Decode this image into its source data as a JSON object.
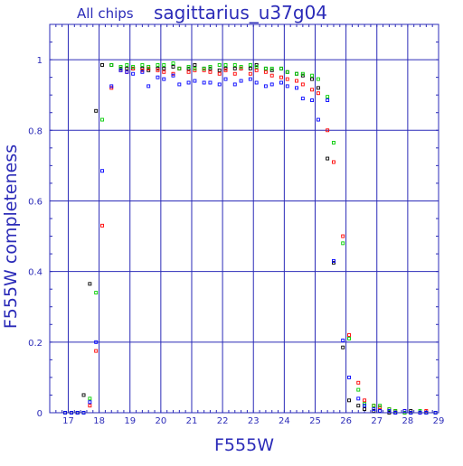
{
  "chart_data": {
    "type": "scatter",
    "title_prefix": "All chips",
    "title": "sagittarius_u37g04",
    "xlabel": "F555W",
    "ylabel": "F555W completeness",
    "xlim": [
      16.4,
      29.0
    ],
    "ylim": [
      0,
      1.1
    ],
    "xticks": [
      17,
      18,
      19,
      20,
      21,
      22,
      23,
      24,
      25,
      26,
      27,
      28,
      29
    ],
    "yticks": [
      0,
      0.2,
      0.4,
      0.6,
      0.8,
      1
    ],
    "ytick_labels": [
      "0",
      "0.2",
      "0.4",
      "0.6",
      "0.8",
      "1"
    ],
    "grid": true,
    "axis_color": "#2b2bb8",
    "series": [
      {
        "color": "#000000",
        "x": [
          16.9,
          17.1,
          17.3,
          17.5,
          17.7,
          17.9,
          18.1,
          18.4,
          18.7,
          18.9,
          19.1,
          19.4,
          19.6,
          19.9,
          20.1,
          20.4,
          20.6,
          20.9,
          21.1,
          21.4,
          21.6,
          21.9,
          22.1,
          22.4,
          22.6,
          22.9,
          23.1,
          23.4,
          23.6,
          23.9,
          24.1,
          24.4,
          24.6,
          24.9,
          25.1,
          25.4,
          25.6,
          25.9,
          26.1,
          26.4,
          26.6,
          26.9,
          27.1,
          27.4,
          27.6,
          27.9,
          28.1,
          28.4,
          28.6,
          28.9
        ],
        "y": [
          0.0,
          0.0,
          0.0,
          0.05,
          0.365,
          0.855,
          0.985,
          0.985,
          0.975,
          0.975,
          0.975,
          0.975,
          0.97,
          0.975,
          0.975,
          0.98,
          0.975,
          0.975,
          0.985,
          0.975,
          0.975,
          0.97,
          0.975,
          0.975,
          0.975,
          0.975,
          0.985,
          0.975,
          0.97,
          0.975,
          0.965,
          0.96,
          0.955,
          0.945,
          0.92,
          0.72,
          0.425,
          0.185,
          0.035,
          0.02,
          0.01,
          0.005,
          0.005,
          0.0,
          0.0,
          0.0,
          0.005,
          0.0,
          0.0,
          0.0
        ]
      },
      {
        "color": "#ff0000",
        "x": [
          16.9,
          17.1,
          17.3,
          17.5,
          17.7,
          17.9,
          18.1,
          18.4,
          18.7,
          18.9,
          19.1,
          19.4,
          19.6,
          19.9,
          20.1,
          20.4,
          20.6,
          20.9,
          21.1,
          21.4,
          21.6,
          21.9,
          22.1,
          22.4,
          22.6,
          22.9,
          23.1,
          23.4,
          23.6,
          23.9,
          24.1,
          24.4,
          24.6,
          24.9,
          25.1,
          25.4,
          25.6,
          25.9,
          26.1,
          26.4,
          26.6,
          26.9,
          27.1,
          27.4,
          27.6,
          27.9,
          28.1,
          28.4,
          28.6,
          28.9
        ],
        "y": [
          0.0,
          0.0,
          0.0,
          0.0,
          0.02,
          0.175,
          0.53,
          0.92,
          0.97,
          0.965,
          0.975,
          0.97,
          0.975,
          0.97,
          0.965,
          0.96,
          0.975,
          0.965,
          0.97,
          0.97,
          0.965,
          0.96,
          0.97,
          0.96,
          0.975,
          0.96,
          0.97,
          0.965,
          0.955,
          0.95,
          0.945,
          0.94,
          0.93,
          0.915,
          0.905,
          0.8,
          0.71,
          0.5,
          0.22,
          0.085,
          0.035,
          0.02,
          0.015,
          0.01,
          0.005,
          0.005,
          0.0,
          0.0,
          0.005,
          0.0
        ]
      },
      {
        "color": "#00cc00",
        "x": [
          16.9,
          17.1,
          17.3,
          17.5,
          17.7,
          17.9,
          18.1,
          18.4,
          18.7,
          18.9,
          19.1,
          19.4,
          19.6,
          19.9,
          20.1,
          20.4,
          20.6,
          20.9,
          21.1,
          21.4,
          21.6,
          21.9,
          22.1,
          22.4,
          22.6,
          22.9,
          23.1,
          23.4,
          23.6,
          23.9,
          24.1,
          24.4,
          24.6,
          24.9,
          25.1,
          25.4,
          25.6,
          25.9,
          26.1,
          26.4,
          26.6,
          26.9,
          27.1,
          27.4,
          27.6,
          27.9,
          28.1,
          28.4,
          28.6,
          28.9
        ],
        "y": [
          0.0,
          0.0,
          0.0,
          0.0,
          0.04,
          0.34,
          0.83,
          0.985,
          0.98,
          0.985,
          0.98,
          0.985,
          0.98,
          0.985,
          0.985,
          0.99,
          0.975,
          0.98,
          0.975,
          0.975,
          0.98,
          0.985,
          0.985,
          0.985,
          0.98,
          0.985,
          0.98,
          0.975,
          0.975,
          0.975,
          0.965,
          0.96,
          0.96,
          0.955,
          0.945,
          0.895,
          0.765,
          0.48,
          0.21,
          0.065,
          0.025,
          0.02,
          0.02,
          0.01,
          0.005,
          0.0,
          0.0,
          0.005,
          0.0,
          0.0
        ]
      },
      {
        "color": "#0000ff",
        "x": [
          16.9,
          17.1,
          17.3,
          17.5,
          17.7,
          17.9,
          18.1,
          18.4,
          18.7,
          18.9,
          19.1,
          19.4,
          19.6,
          19.9,
          20.1,
          20.4,
          20.6,
          20.9,
          21.1,
          21.4,
          21.6,
          21.9,
          22.1,
          22.4,
          22.6,
          22.9,
          23.1,
          23.4,
          23.6,
          23.9,
          24.1,
          24.4,
          24.6,
          24.9,
          25.1,
          25.4,
          25.6,
          25.9,
          26.1,
          26.4,
          26.6,
          26.9,
          27.1,
          27.4,
          27.6,
          27.9,
          28.1,
          28.4,
          28.6,
          28.9
        ],
        "y": [
          0.0,
          0.0,
          0.0,
          0.0,
          0.03,
          0.2,
          0.685,
          0.925,
          0.97,
          0.965,
          0.96,
          0.965,
          0.925,
          0.95,
          0.945,
          0.955,
          0.93,
          0.935,
          0.94,
          0.935,
          0.935,
          0.93,
          0.945,
          0.93,
          0.94,
          0.945,
          0.935,
          0.925,
          0.93,
          0.935,
          0.925,
          0.92,
          0.89,
          0.885,
          0.83,
          0.885,
          0.43,
          0.205,
          0.1,
          0.04,
          0.02,
          0.01,
          0.005,
          0.005,
          0.0,
          0.005,
          0.0,
          0.0,
          0.0,
          0.0
        ]
      }
    ]
  }
}
